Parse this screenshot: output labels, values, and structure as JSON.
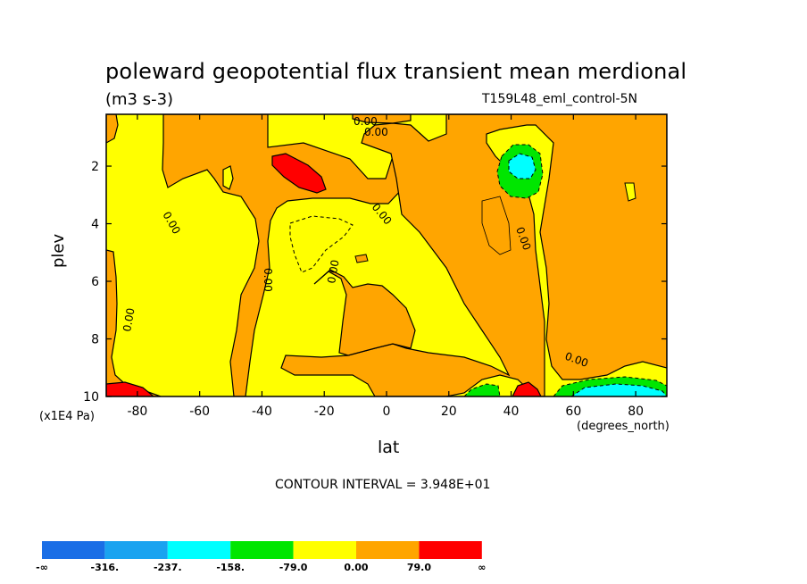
{
  "chart_data": {
    "type": "contour",
    "title": "poleward geopotential flux transient mean merdional",
    "subtitle": "(m3 s-3)",
    "experiment": "T159L48_eml_control-5N",
    "xlabel": "lat",
    "x_units": "(degrees_north)",
    "ylabel": "plev",
    "y_units": "(x1E4 Pa)",
    "contour_interval_text": "CONTOUR INTERVAL = 3.948E+01",
    "xlim": [
      -90,
      90
    ],
    "ylim": [
      10,
      0.2
    ],
    "x_ticks": [
      -80,
      -60,
      -40,
      -20,
      0,
      20,
      40,
      60,
      80
    ],
    "x_tick_labels": [
      "-80",
      "-60",
      "-40",
      "-20",
      "0",
      "20",
      "40",
      "60",
      "80"
    ],
    "y_ticks": [
      2,
      4,
      6,
      8,
      10
    ],
    "y_tick_labels": [
      "2",
      "4",
      "6",
      "8",
      "10"
    ],
    "contour_labels": [
      "0.00",
      "0.00",
      "0.00",
      "0.00",
      "0.00",
      "0.00",
      "0.00",
      "0.00",
      "0.00"
    ],
    "colorbar": {
      "levels": [
        "-∞",
        "-316.",
        "-237.",
        "-158.",
        "-79.0",
        "0.00",
        "79.0",
        "∞"
      ],
      "colors": [
        "#1a6ee6",
        "#1aa3f0",
        "#00ffff",
        "#00e600",
        "#ffff00",
        "#ffa500",
        "#ff0000"
      ]
    }
  },
  "colors": {
    "positive": "#ffa500",
    "near_zero": "#ffff00",
    "strong_positive": "#ff0000",
    "negative": "#00e600",
    "strong_negative": "#00ffff"
  }
}
